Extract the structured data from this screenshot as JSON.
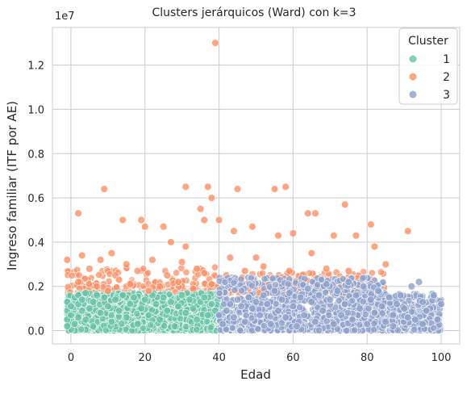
{
  "chart_data": {
    "type": "scatter",
    "title": "Clusters jerárquicos (Ward) con k=3",
    "xlabel": "Edad",
    "ylabel": "Ingreso familiar (ITF por AE)",
    "offset_label": "1e7",
    "xlim": [
      -5,
      105
    ],
    "ylim": [
      -0.06,
      1.37
    ],
    "y_scale_note": "values in units of 1e7",
    "xticks": [
      0,
      20,
      40,
      60,
      80,
      100
    ],
    "yticks": [
      0.0,
      0.2,
      0.4,
      0.6,
      0.8,
      1.0,
      1.2
    ],
    "ytick_labels": [
      "0.0",
      "0.2",
      "0.4",
      "0.6",
      "0.8",
      "1.0",
      "1.2"
    ],
    "grid": true,
    "legend": {
      "title": "Cluster",
      "placement": "top-right"
    },
    "colors": {
      "1": "#66c2a5",
      "2": "#fc8d62",
      "3": "#8da0cb"
    },
    "series": [
      {
        "name": "1",
        "description_range": {
          "x": [
            -1,
            42
          ],
          "y": [
            0.0,
            0.17
          ]
        },
        "points": [
          [
            -1,
            0.13
          ],
          [
            -1,
            0.09
          ],
          [
            -1,
            0.05
          ],
          [
            -1,
            0.02
          ],
          [
            0,
            0.11
          ],
          [
            0,
            0.07
          ],
          [
            1,
            0.15
          ],
          [
            1,
            0.03
          ],
          [
            2,
            0.16
          ],
          [
            2,
            0.12
          ],
          [
            2,
            0.06
          ],
          [
            3,
            0.14
          ],
          [
            3,
            0.09
          ],
          [
            4,
            0.17
          ],
          [
            4,
            0.05
          ],
          [
            5,
            0.1
          ],
          [
            6,
            0.13
          ],
          [
            6,
            0.02
          ],
          [
            7,
            0.16
          ],
          [
            8,
            0.08
          ],
          [
            9,
            0.15
          ],
          [
            10,
            0.11
          ],
          [
            11,
            0.04
          ],
          [
            12,
            0.14
          ],
          [
            13,
            0.09
          ],
          [
            14,
            0.16
          ],
          [
            15,
            0.06
          ],
          [
            16,
            0.12
          ],
          [
            17,
            0.15
          ],
          [
            18,
            0.03
          ],
          [
            19,
            0.1
          ],
          [
            20,
            0.14
          ],
          [
            21,
            0.07
          ],
          [
            22,
            0.16
          ],
          [
            23,
            0.12
          ],
          [
            24,
            0.05
          ],
          [
            25,
            0.15
          ],
          [
            26,
            0.09
          ],
          [
            27,
            0.13
          ],
          [
            28,
            0.02
          ],
          [
            29,
            0.11
          ],
          [
            30,
            0.16
          ],
          [
            31,
            0.08
          ],
          [
            32,
            0.14
          ],
          [
            33,
            0.1
          ],
          [
            34,
            0.05
          ],
          [
            35,
            0.13
          ],
          [
            36,
            0.15
          ],
          [
            37,
            0.07
          ],
          [
            38,
            0.12
          ],
          [
            39,
            0.09
          ],
          [
            40,
            0.04
          ],
          [
            41,
            0.11
          ],
          [
            42,
            0.06
          ]
        ]
      },
      {
        "name": "2",
        "description_range": {
          "x": [
            -1,
            91
          ],
          "y": [
            0.17,
            1.3
          ]
        },
        "points": [
          [
            39,
            1.3
          ],
          [
            9,
            0.64
          ],
          [
            31,
            0.65
          ],
          [
            37,
            0.65
          ],
          [
            38,
            0.6
          ],
          [
            45,
            0.64
          ],
          [
            55,
            0.64
          ],
          [
            58,
            0.65
          ],
          [
            74,
            0.57
          ],
          [
            2,
            0.53
          ],
          [
            35,
            0.55
          ],
          [
            14,
            0.5
          ],
          [
            19,
            0.5
          ],
          [
            20,
            0.47
          ],
          [
            25,
            0.47
          ],
          [
            36,
            0.5
          ],
          [
            40,
            0.5
          ],
          [
            64,
            0.53
          ],
          [
            66,
            0.53
          ],
          [
            81,
            0.48
          ],
          [
            91,
            0.45
          ],
          [
            27,
            0.4
          ],
          [
            31,
            0.38
          ],
          [
            44,
            0.45
          ],
          [
            49,
            0.47
          ],
          [
            56,
            0.43
          ],
          [
            60,
            0.44
          ],
          [
            71,
            0.43
          ],
          [
            77,
            0.43
          ],
          [
            82,
            0.38
          ],
          [
            11,
            0.35
          ],
          [
            -1,
            0.32
          ],
          [
            3,
            0.34
          ],
          [
            8,
            0.32
          ],
          [
            15,
            0.3
          ],
          [
            22,
            0.32
          ],
          [
            30,
            0.31
          ],
          [
            43,
            0.33
          ],
          [
            50,
            0.33
          ],
          [
            65,
            0.35
          ],
          [
            85,
            0.3
          ],
          [
            5,
            0.28
          ],
          [
            12,
            0.25
          ],
          [
            18,
            0.27
          ],
          [
            26,
            0.25
          ],
          [
            34,
            0.28
          ],
          [
            47,
            0.27
          ],
          [
            52,
            0.29
          ],
          [
            59,
            0.27
          ],
          [
            69,
            0.28
          ],
          [
            75,
            0.27
          ],
          [
            2,
            0.22
          ],
          [
            7,
            0.2
          ],
          [
            16,
            0.21
          ],
          [
            24,
            0.2
          ],
          [
            29,
            0.22
          ],
          [
            38,
            0.21
          ],
          [
            45,
            0.23
          ],
          [
            53,
            0.22
          ],
          [
            62,
            0.21
          ],
          [
            10,
            0.18
          ],
          [
            21,
            0.18
          ],
          [
            33,
            0.19
          ],
          [
            41,
            0.18
          ],
          [
            48,
            0.19
          ],
          [
            57,
            0.24
          ],
          [
            79,
            0.23
          ],
          [
            13,
            0.23
          ],
          [
            36,
            0.26
          ],
          [
            42,
            0.25
          ]
        ]
      },
      {
        "name": "3",
        "description_range": {
          "x": [
            40,
            100
          ],
          "y": [
            0.0,
            0.24
          ]
        },
        "points": [
          [
            98,
            0.16
          ],
          [
            100,
            0.12
          ],
          [
            95,
            0.13
          ],
          [
            97,
            0.1
          ],
          [
            94,
            0.22
          ],
          [
            92,
            0.2
          ],
          [
            90,
            0.1
          ],
          [
            89,
            0.16
          ],
          [
            93,
            0.05
          ],
          [
            96,
            0.09
          ],
          [
            88,
            0.12
          ],
          [
            87,
            0.07
          ],
          [
            86,
            0.15
          ],
          [
            85,
            0.04
          ],
          [
            84,
            0.11
          ],
          [
            83,
            0.18
          ],
          [
            82,
            0.08
          ],
          [
            81,
            0.14
          ],
          [
            80,
            0.03
          ],
          [
            79,
            0.2
          ],
          [
            78,
            0.1
          ],
          [
            77,
            0.16
          ],
          [
            76,
            0.05
          ],
          [
            75,
            0.22
          ],
          [
            74,
            0.12
          ],
          [
            73,
            0.07
          ],
          [
            72,
            0.18
          ],
          [
            71,
            0.03
          ],
          [
            70,
            0.14
          ],
          [
            69,
            0.21
          ],
          [
            68,
            0.09
          ],
          [
            67,
            0.16
          ],
          [
            66,
            0.04
          ],
          [
            65,
            0.13
          ],
          [
            64,
            0.19
          ],
          [
            63,
            0.07
          ],
          [
            62,
            0.15
          ],
          [
            61,
            0.02
          ],
          [
            60,
            0.11
          ],
          [
            59,
            0.17
          ],
          [
            58,
            0.06
          ],
          [
            57,
            0.14
          ],
          [
            56,
            0.09
          ],
          [
            55,
            0.18
          ],
          [
            54,
            0.03
          ],
          [
            53,
            0.12
          ],
          [
            52,
            0.16
          ],
          [
            51,
            0.07
          ],
          [
            50,
            0.13
          ],
          [
            49,
            0.1
          ],
          [
            48,
            0.15
          ],
          [
            47,
            0.04
          ],
          [
            46,
            0.11
          ],
          [
            45,
            0.14
          ],
          [
            44,
            0.06
          ],
          [
            43,
            0.12
          ],
          [
            42,
            0.09
          ],
          [
            41,
            0.03
          ],
          [
            40,
            0.07
          ],
          [
            95,
            0.03
          ],
          [
            91,
            0.06
          ],
          [
            99,
            0.05
          ],
          [
            87,
            0.02
          ]
        ]
      }
    ]
  }
}
